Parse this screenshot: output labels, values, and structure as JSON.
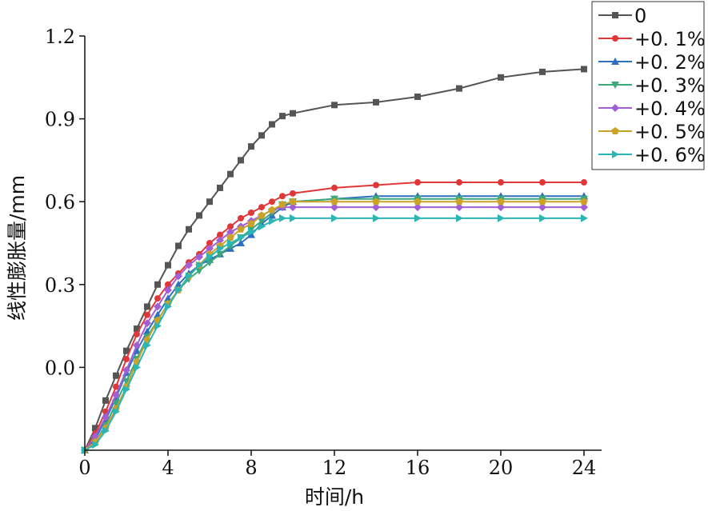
{
  "chart_data": {
    "type": "line",
    "xlabel": "时间/h",
    "ylabel": "线性膨胀量/mm",
    "xlim": [
      0,
      24
    ],
    "ylim": [
      -0.3,
      1.2
    ],
    "x_ticks": [
      "0",
      "4",
      "8",
      "12",
      "16",
      "20",
      "24"
    ],
    "y_ticks": [
      "0.0",
      "0.3",
      "0.6",
      "0.9",
      "1.2"
    ],
    "y_tick_values": [
      0.0,
      0.3,
      0.6,
      0.9,
      1.2
    ],
    "x_tick_values": [
      0,
      4,
      8,
      12,
      16,
      20,
      24
    ],
    "grid": false,
    "legend_position": "top-right",
    "series": [
      {
        "name": "0",
        "color": "#555555",
        "marker": "square",
        "points": [
          [
            0,
            -0.3
          ],
          [
            0.5,
            -0.22
          ],
          [
            1,
            -0.12
          ],
          [
            1.5,
            -0.03
          ],
          [
            2,
            0.06
          ],
          [
            2.5,
            0.14
          ],
          [
            3,
            0.22
          ],
          [
            3.5,
            0.3
          ],
          [
            4,
            0.37
          ],
          [
            4.5,
            0.44
          ],
          [
            5,
            0.5
          ],
          [
            5.5,
            0.55
          ],
          [
            6,
            0.6
          ],
          [
            6.5,
            0.65
          ],
          [
            7,
            0.7
          ],
          [
            7.5,
            0.75
          ],
          [
            8,
            0.8
          ],
          [
            8.5,
            0.84
          ],
          [
            9,
            0.88
          ],
          [
            9.5,
            0.91
          ],
          [
            10,
            0.92
          ],
          [
            12,
            0.95
          ],
          [
            14,
            0.96
          ],
          [
            16,
            0.98
          ],
          [
            18,
            1.01
          ],
          [
            20,
            1.05
          ],
          [
            22,
            1.07
          ],
          [
            24,
            1.08
          ]
        ]
      },
      {
        "name": "+0. 1%",
        "color": "#e03838",
        "marker": "circle",
        "points": [
          [
            0,
            -0.3
          ],
          [
            0.5,
            -0.24
          ],
          [
            1,
            -0.16
          ],
          [
            1.5,
            -0.07
          ],
          [
            2,
            0.03
          ],
          [
            2.5,
            0.12
          ],
          [
            3,
            0.19
          ],
          [
            3.5,
            0.25
          ],
          [
            4,
            0.3
          ],
          [
            4.5,
            0.34
          ],
          [
            5,
            0.38
          ],
          [
            5.5,
            0.41
          ],
          [
            6,
            0.45
          ],
          [
            6.5,
            0.48
          ],
          [
            7,
            0.51
          ],
          [
            7.5,
            0.54
          ],
          [
            8,
            0.56
          ],
          [
            8.5,
            0.58
          ],
          [
            9,
            0.6
          ],
          [
            9.5,
            0.62
          ],
          [
            10,
            0.63
          ],
          [
            12,
            0.65
          ],
          [
            14,
            0.66
          ],
          [
            16,
            0.67
          ],
          [
            18,
            0.67
          ],
          [
            20,
            0.67
          ],
          [
            22,
            0.67
          ],
          [
            24,
            0.67
          ]
        ]
      },
      {
        "name": "+0. 2%",
        "color": "#2f6fbf",
        "marker": "triangle-up",
        "points": [
          [
            0,
            -0.3
          ],
          [
            0.5,
            -0.26
          ],
          [
            1,
            -0.19
          ],
          [
            1.5,
            -0.11
          ],
          [
            2,
            -0.02
          ],
          [
            2.5,
            0.06
          ],
          [
            3,
            0.13
          ],
          [
            3.5,
            0.19
          ],
          [
            4,
            0.25
          ],
          [
            4.5,
            0.3
          ],
          [
            5,
            0.34
          ],
          [
            5.5,
            0.37
          ],
          [
            6,
            0.39
          ],
          [
            6.5,
            0.41
          ],
          [
            7,
            0.43
          ],
          [
            7.5,
            0.45
          ],
          [
            8,
            0.48
          ],
          [
            8.5,
            0.52
          ],
          [
            9,
            0.55
          ],
          [
            9.5,
            0.58
          ],
          [
            10,
            0.6
          ],
          [
            12,
            0.61
          ],
          [
            14,
            0.62
          ],
          [
            16,
            0.62
          ],
          [
            18,
            0.62
          ],
          [
            20,
            0.62
          ],
          [
            22,
            0.62
          ],
          [
            24,
            0.62
          ]
        ]
      },
      {
        "name": "+0. 3%",
        "color": "#3aa878",
        "marker": "triangle-down",
        "points": [
          [
            0,
            -0.3
          ],
          [
            0.5,
            -0.27
          ],
          [
            1,
            -0.21
          ],
          [
            1.5,
            -0.13
          ],
          [
            2,
            -0.05
          ],
          [
            2.5,
            0.03
          ],
          [
            3,
            0.11
          ],
          [
            3.5,
            0.17
          ],
          [
            4,
            0.23
          ],
          [
            4.5,
            0.28
          ],
          [
            5,
            0.32
          ],
          [
            5.5,
            0.35
          ],
          [
            6,
            0.38
          ],
          [
            6.5,
            0.41
          ],
          [
            7,
            0.44
          ],
          [
            7.5,
            0.47
          ],
          [
            8,
            0.5
          ],
          [
            8.5,
            0.53
          ],
          [
            9,
            0.56
          ],
          [
            9.5,
            0.59
          ],
          [
            10,
            0.6
          ],
          [
            12,
            0.61
          ],
          [
            14,
            0.61
          ],
          [
            16,
            0.61
          ],
          [
            18,
            0.61
          ],
          [
            20,
            0.61
          ],
          [
            22,
            0.61
          ],
          [
            24,
            0.61
          ]
        ]
      },
      {
        "name": "+0. 4%",
        "color": "#a15fd6",
        "marker": "diamond",
        "points": [
          [
            0,
            -0.3
          ],
          [
            0.5,
            -0.25
          ],
          [
            1,
            -0.18
          ],
          [
            1.5,
            -0.1
          ],
          [
            2,
            -0.01
          ],
          [
            2.5,
            0.08
          ],
          [
            3,
            0.16
          ],
          [
            3.5,
            0.22
          ],
          [
            4,
            0.28
          ],
          [
            4.5,
            0.33
          ],
          [
            5,
            0.37
          ],
          [
            5.5,
            0.4
          ],
          [
            6,
            0.43
          ],
          [
            6.5,
            0.46
          ],
          [
            7,
            0.49
          ],
          [
            7.5,
            0.51
          ],
          [
            8,
            0.53
          ],
          [
            8.5,
            0.55
          ],
          [
            9,
            0.57
          ],
          [
            9.5,
            0.58
          ],
          [
            10,
            0.58
          ],
          [
            12,
            0.58
          ],
          [
            14,
            0.58
          ],
          [
            16,
            0.58
          ],
          [
            18,
            0.58
          ],
          [
            20,
            0.58
          ],
          [
            22,
            0.58
          ],
          [
            24,
            0.58
          ]
        ]
      },
      {
        "name": "+0. 5%",
        "color": "#c9a227",
        "marker": "pentagon",
        "points": [
          [
            0,
            -0.3
          ],
          [
            0.5,
            -0.27
          ],
          [
            1,
            -0.22
          ],
          [
            1.5,
            -0.15
          ],
          [
            2,
            -0.07
          ],
          [
            2.5,
            0.02
          ],
          [
            3,
            0.1
          ],
          [
            3.5,
            0.17
          ],
          [
            4,
            0.23
          ],
          [
            4.5,
            0.28
          ],
          [
            5,
            0.33
          ],
          [
            5.5,
            0.37
          ],
          [
            6,
            0.41
          ],
          [
            6.5,
            0.44
          ],
          [
            7,
            0.47
          ],
          [
            7.5,
            0.5
          ],
          [
            8,
            0.52
          ],
          [
            8.5,
            0.55
          ],
          [
            9,
            0.57
          ],
          [
            9.5,
            0.59
          ],
          [
            10,
            0.6
          ],
          [
            12,
            0.6
          ],
          [
            14,
            0.6
          ],
          [
            16,
            0.6
          ],
          [
            18,
            0.6
          ],
          [
            20,
            0.6
          ],
          [
            22,
            0.6
          ],
          [
            24,
            0.6
          ]
        ]
      },
      {
        "name": "+0. 6%",
        "color": "#2bb5b5",
        "marker": "triangle-right",
        "points": [
          [
            0,
            -0.3
          ],
          [
            0.5,
            -0.28
          ],
          [
            1,
            -0.23
          ],
          [
            1.5,
            -0.16
          ],
          [
            2,
            -0.08
          ],
          [
            2.5,
            0.0
          ],
          [
            3,
            0.08
          ],
          [
            3.5,
            0.15
          ],
          [
            4,
            0.22
          ],
          [
            4.5,
            0.28
          ],
          [
            5,
            0.33
          ],
          [
            5.5,
            0.37
          ],
          [
            6,
            0.4
          ],
          [
            6.5,
            0.43
          ],
          [
            7,
            0.45
          ],
          [
            7.5,
            0.47
          ],
          [
            8,
            0.49
          ],
          [
            8.5,
            0.51
          ],
          [
            9,
            0.53
          ],
          [
            9.5,
            0.54
          ],
          [
            10,
            0.54
          ],
          [
            12,
            0.54
          ],
          [
            14,
            0.54
          ],
          [
            16,
            0.54
          ],
          [
            18,
            0.54
          ],
          [
            20,
            0.54
          ],
          [
            22,
            0.54
          ],
          [
            24,
            0.54
          ]
        ]
      }
    ]
  }
}
